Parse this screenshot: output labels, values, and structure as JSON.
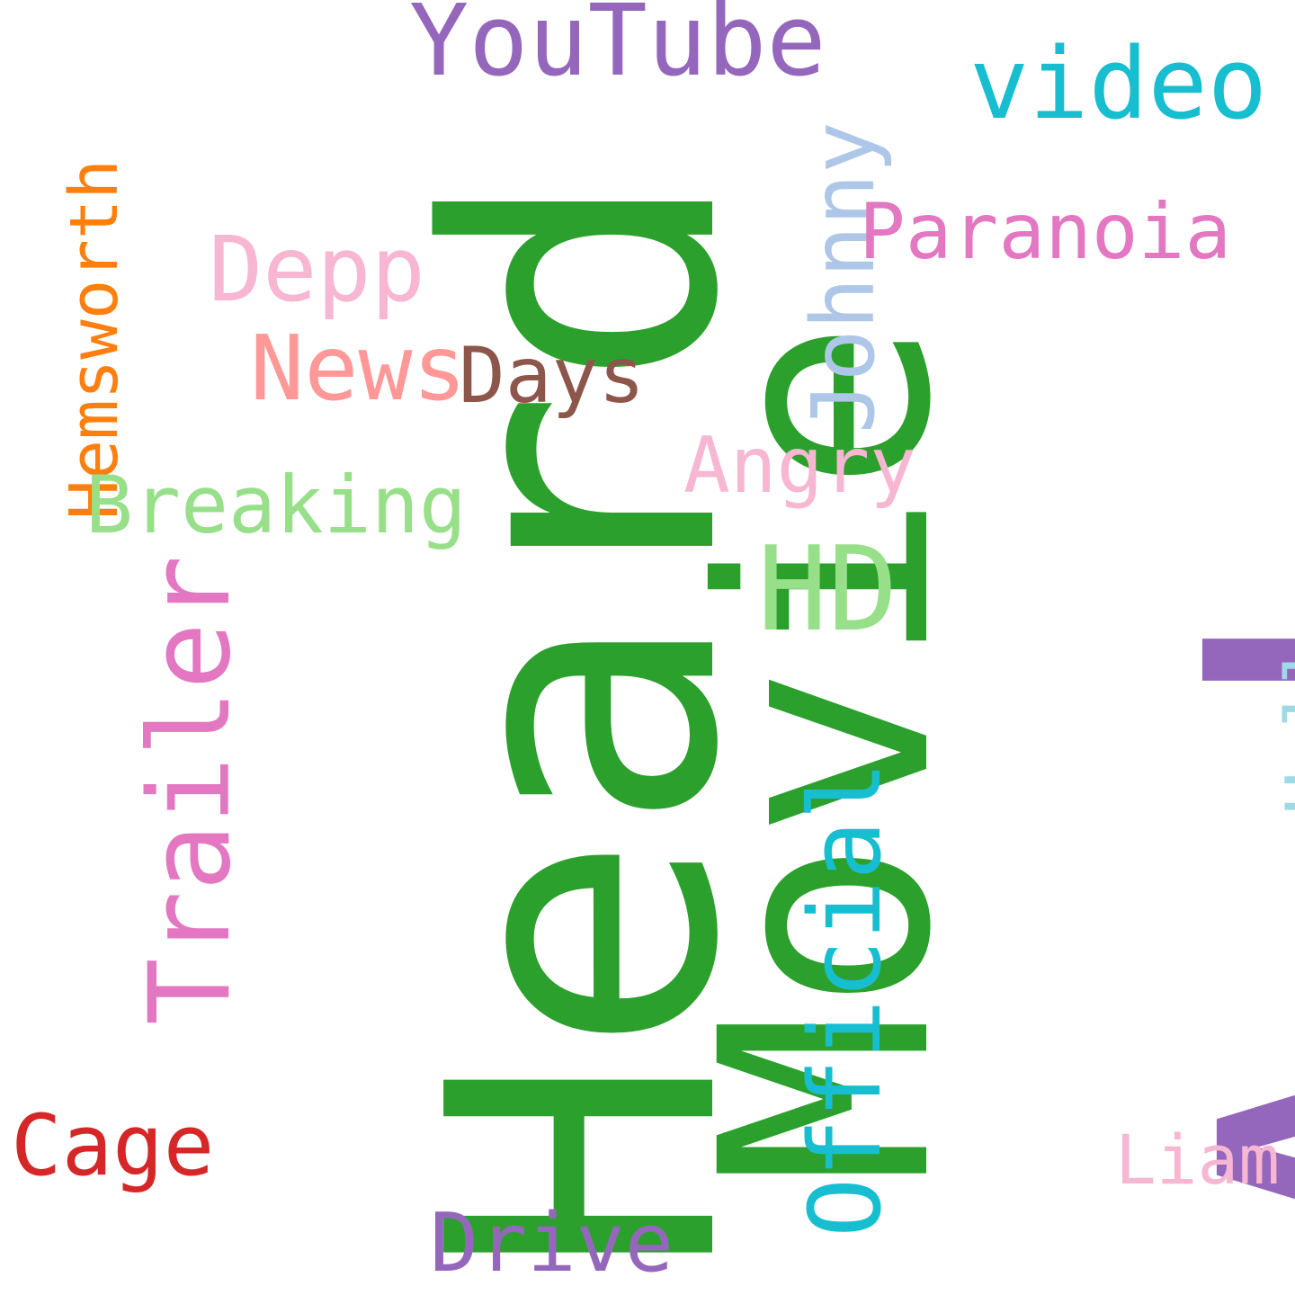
{
  "words": {
    "amber": "Amber",
    "heard": "Heard",
    "movie": "Movie",
    "trailer": "Trailer",
    "official": "Official",
    "johnny": "Johnny",
    "hemsworth": "Hemsworth",
    "hollyscoop": "Hollyscoop",
    "youtube": "YouTube",
    "video": "video",
    "paranoia": "Paranoia",
    "depp": "Depp",
    "news": "News",
    "days": "Days",
    "angry": "Angry",
    "breaking": "Breaking",
    "hd": "HD",
    "cage": "Cage",
    "drive": "Drive",
    "liam": "Liam"
  },
  "colors": {
    "background": "#ffffff",
    "purple": "#9467bd",
    "green": "#2ca02c",
    "light_green": "#98df8a",
    "pink": "#e377c2",
    "light_pink": "#f7b6d2",
    "cyan": "#17becf",
    "light_cyan": "#9edae5",
    "light_blue": "#aec7e8",
    "orange": "#ff7f0e",
    "salmon": "#ff9896",
    "brown": "#8c564b",
    "red": "#d62728"
  }
}
